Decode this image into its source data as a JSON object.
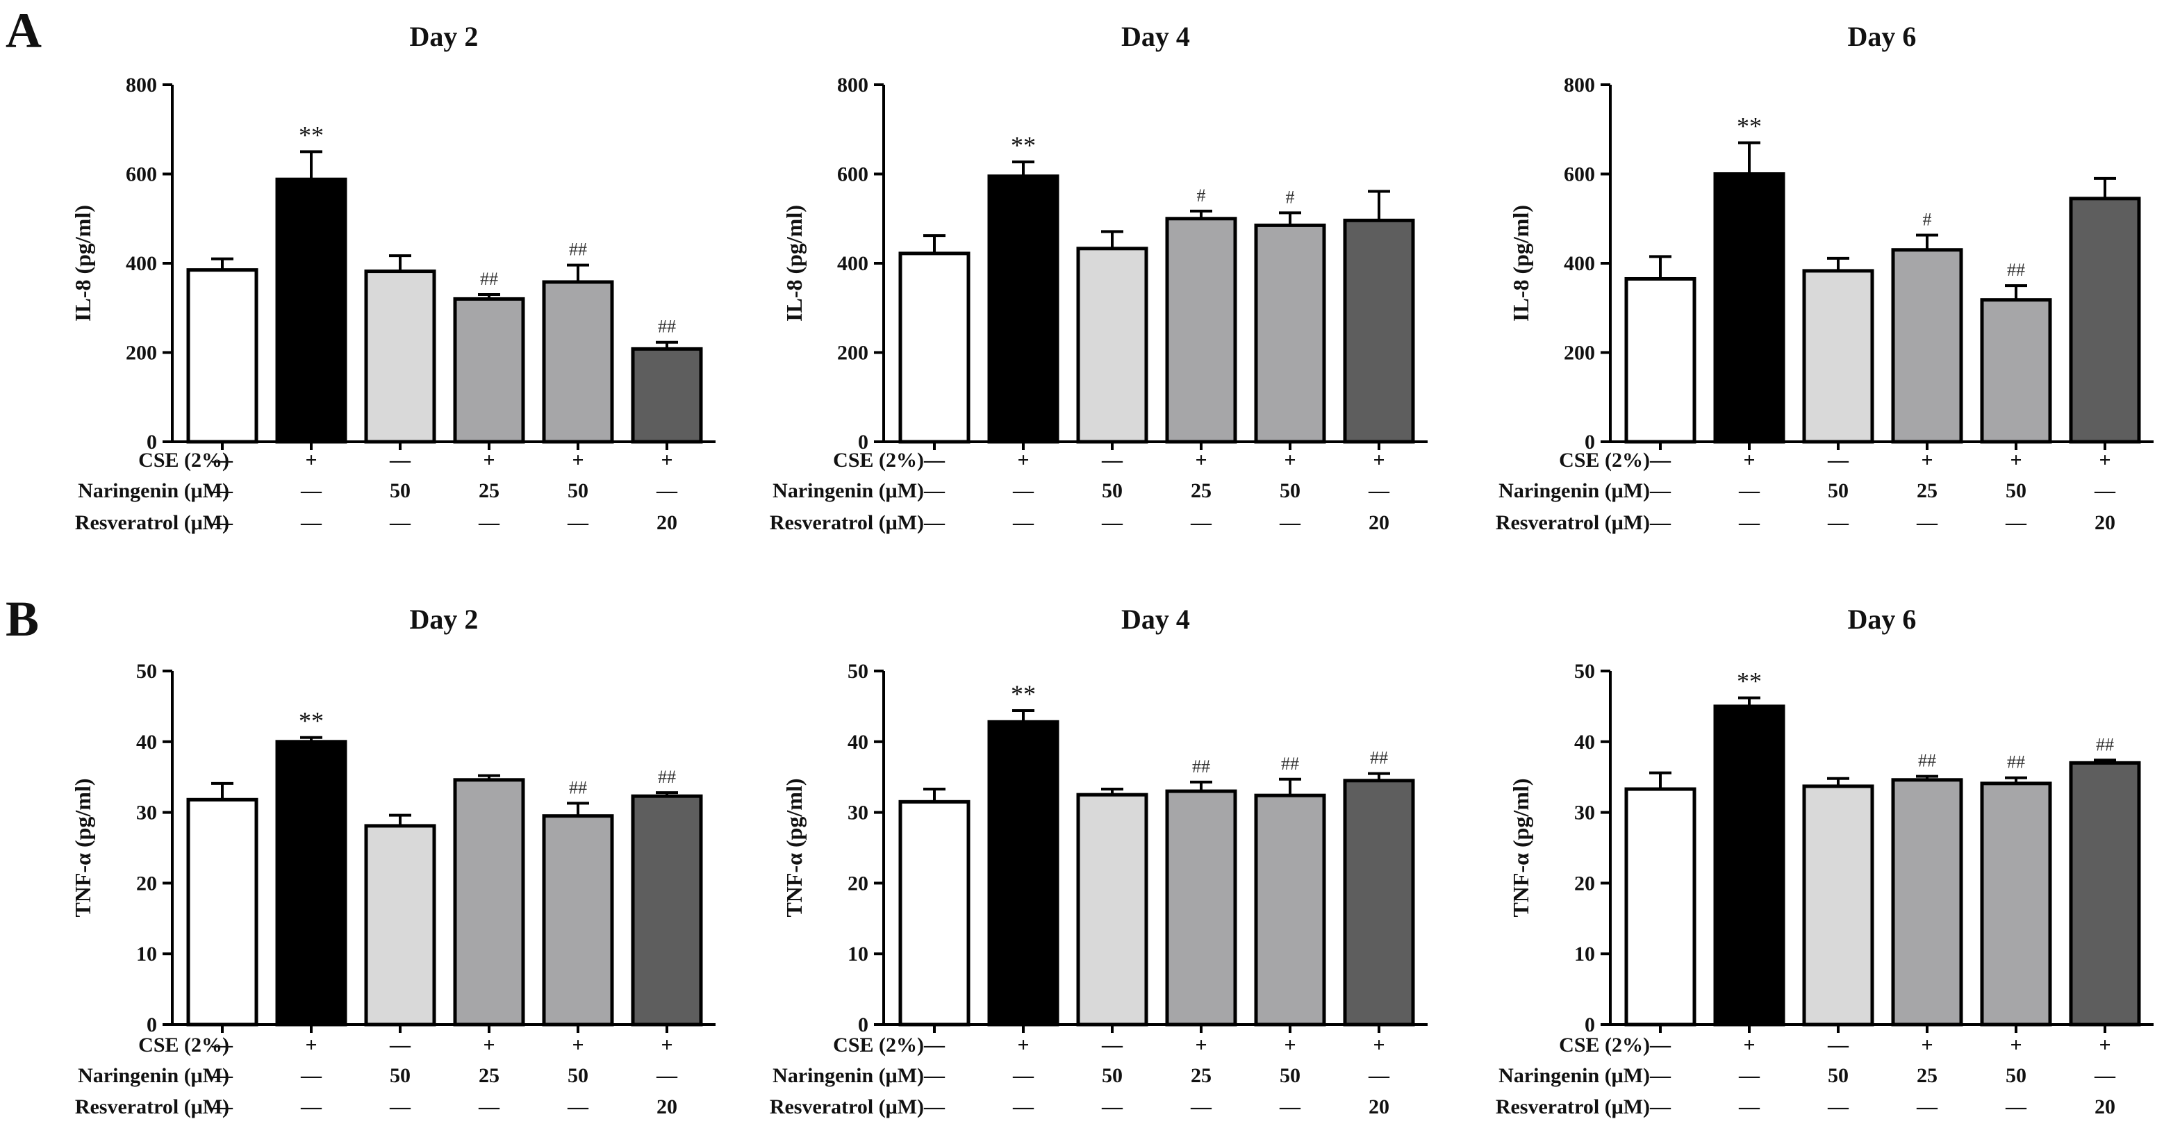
{
  "panel_labels": [
    "A",
    "B"
  ],
  "treatment_rows": [
    {
      "label": "CSE (2%)",
      "values": [
        "—",
        "+",
        "—",
        "+",
        "+",
        "+"
      ]
    },
    {
      "label": "Naringenin (μM)",
      "values": [
        "—",
        "—",
        "50",
        "25",
        "50",
        "—"
      ]
    },
    {
      "label": "Resveratrol (μM)",
      "values": [
        "—",
        "—",
        "—",
        "—",
        "—",
        "20"
      ]
    }
  ],
  "colors": {
    "bars": [
      "#ffffff",
      "#000000",
      "#d9d9d9",
      "#a6a6a8",
      "#a6a6a8",
      "#5e5e5e"
    ],
    "axis": "#000000"
  },
  "chart_data": [
    {
      "type": "bar",
      "panel": "A",
      "title": "Day 2",
      "ylabel": "IL-8 (pg/ml)",
      "ylim": [
        0,
        800
      ],
      "yticks": [
        0,
        200,
        400,
        600,
        800
      ],
      "values": [
        385,
        588,
        382,
        320,
        358,
        208
      ],
      "errors": [
        25,
        62,
        35,
        10,
        38,
        15
      ],
      "annotations": [
        "",
        "**",
        "",
        "##",
        "##",
        "##"
      ]
    },
    {
      "type": "bar",
      "panel": "A",
      "title": "Day 4",
      "ylabel": "IL-8 (pg/ml)",
      "ylim": [
        0,
        800
      ],
      "yticks": [
        0,
        200,
        400,
        600,
        800
      ],
      "values": [
        422,
        595,
        433,
        500,
        485,
        496
      ],
      "errors": [
        40,
        32,
        38,
        17,
        28,
        65
      ],
      "annotations": [
        "",
        "**",
        "",
        "#",
        "#",
        ""
      ]
    },
    {
      "type": "bar",
      "panel": "A",
      "title": "Day 6",
      "ylabel": "IL-8 (pg/ml)",
      "ylim": [
        0,
        800
      ],
      "yticks": [
        0,
        200,
        400,
        600,
        800
      ],
      "values": [
        365,
        600,
        383,
        430,
        318,
        545
      ],
      "errors": [
        50,
        70,
        28,
        33,
        32,
        45
      ],
      "annotations": [
        "",
        "**",
        "",
        "#",
        "##",
        ""
      ]
    },
    {
      "type": "bar",
      "panel": "B",
      "title": "Day 2",
      "ylabel": "TNF-α (pg/ml)",
      "ylim": [
        0,
        50
      ],
      "yticks": [
        0,
        10,
        20,
        30,
        40,
        50
      ],
      "values": [
        31.8,
        40.0,
        28.1,
        34.6,
        29.5,
        32.3
      ],
      "errors": [
        2.3,
        0.6,
        1.5,
        0.6,
        1.8,
        0.5
      ],
      "annotations": [
        "",
        "**",
        "",
        "",
        "##",
        "##"
      ]
    },
    {
      "type": "bar",
      "panel": "B",
      "title": "Day 4",
      "ylabel": "TNF-α (pg/ml)",
      "ylim": [
        0,
        50
      ],
      "yticks": [
        0,
        10,
        20,
        30,
        40,
        50
      ],
      "values": [
        31.5,
        42.8,
        32.5,
        33.0,
        32.4,
        34.5
      ],
      "errors": [
        1.8,
        1.6,
        0.8,
        1.3,
        2.3,
        1.0
      ],
      "annotations": [
        "",
        "**",
        "",
        "##",
        "##",
        "##"
      ]
    },
    {
      "type": "bar",
      "panel": "B",
      "title": "Day 6",
      "ylabel": "TNF-α (pg/ml)",
      "ylim": [
        0,
        50
      ],
      "yticks": [
        0,
        10,
        20,
        30,
        40,
        50
      ],
      "values": [
        33.3,
        45.0,
        33.7,
        34.6,
        34.1,
        37.0
      ],
      "errors": [
        2.3,
        1.2,
        1.1,
        0.5,
        0.8,
        0.4
      ],
      "annotations": [
        "",
        "**",
        "",
        "##",
        "##",
        "##"
      ]
    }
  ]
}
